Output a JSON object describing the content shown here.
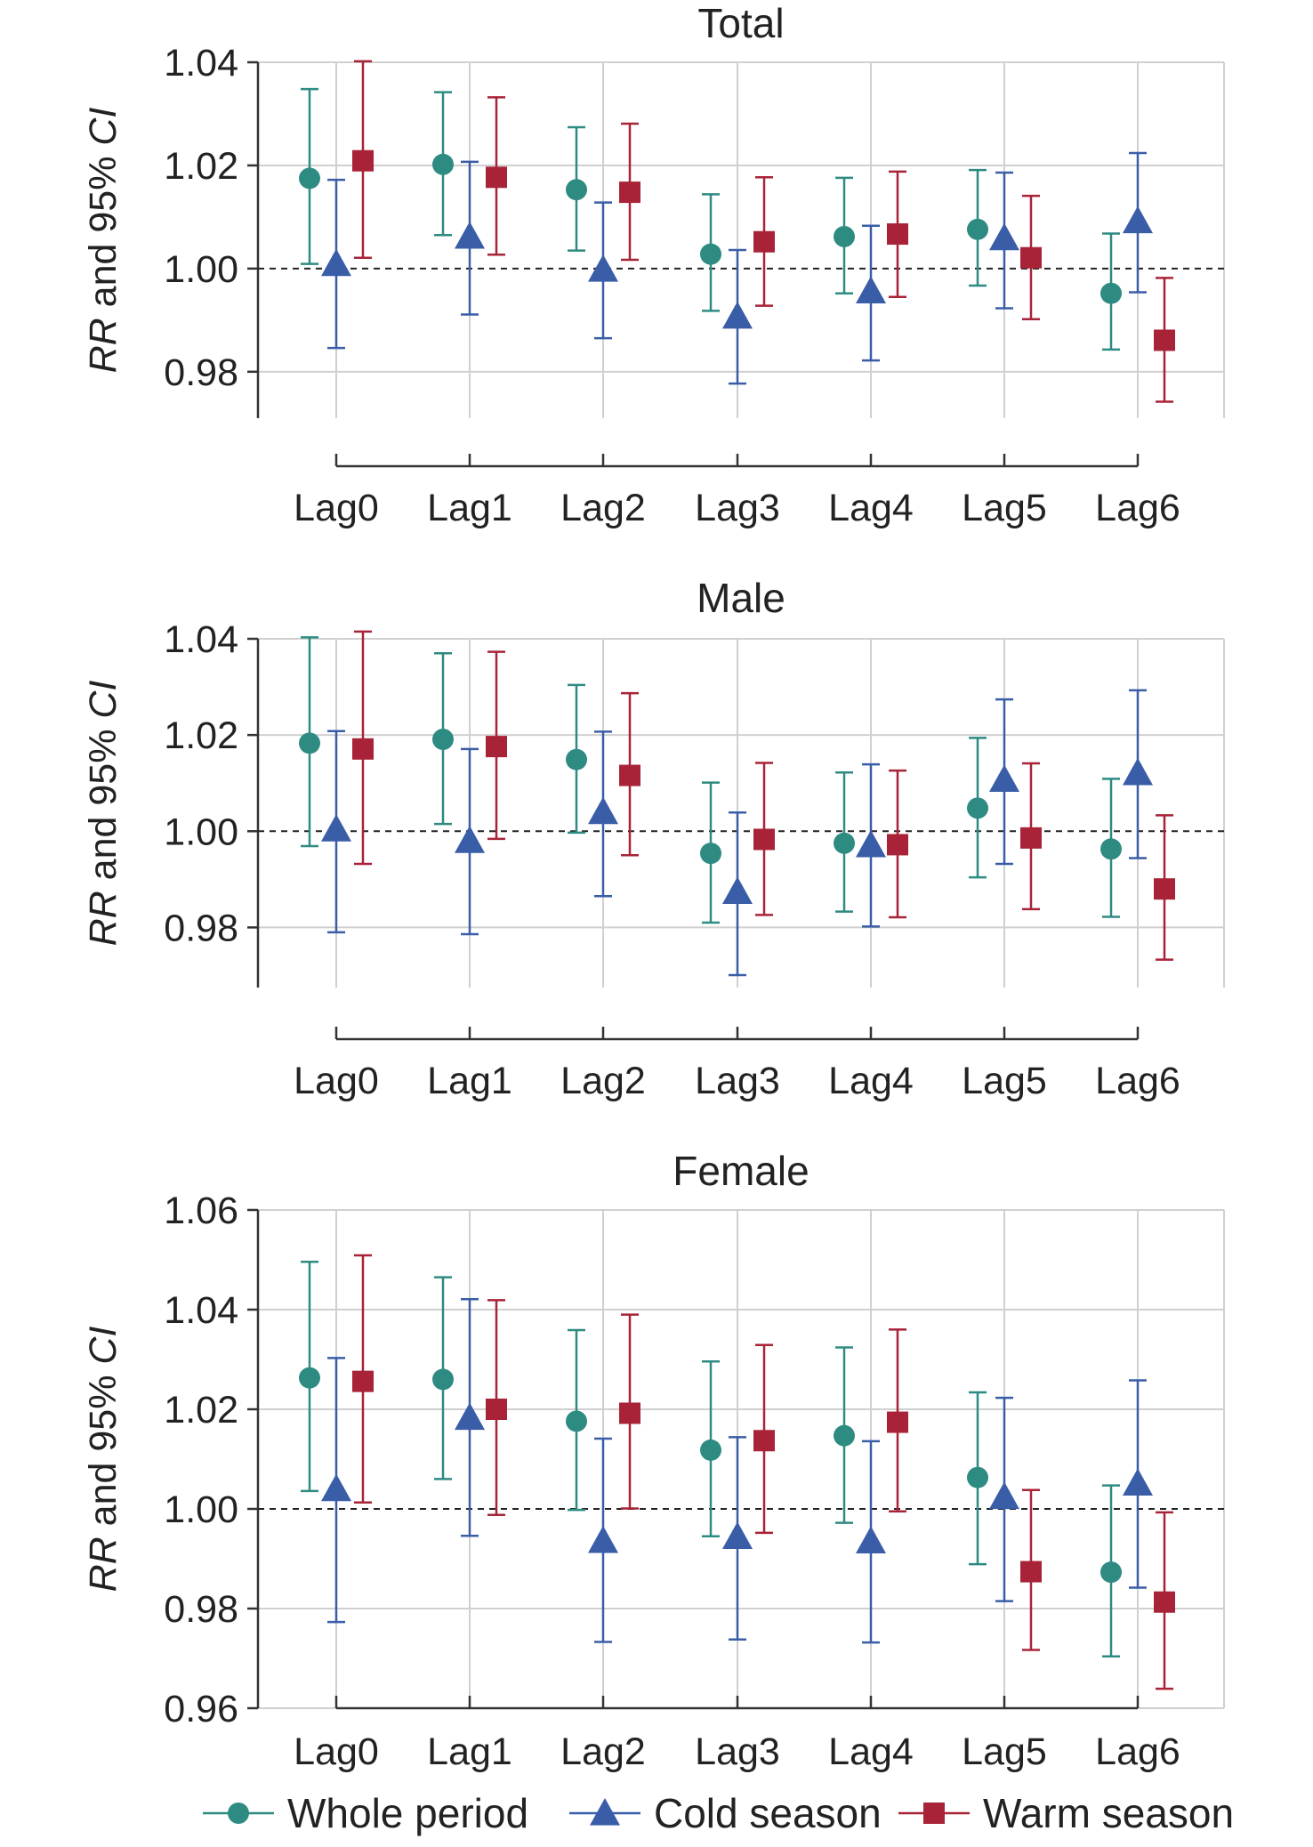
{
  "chart_data": [
    {
      "type": "scatter",
      "title": "Total",
      "ylabel_italic_1": "RR",
      "ylabel_mid": " and 95% ",
      "ylabel_italic_2": "CI",
      "categories": [
        "Lag0",
        "Lag1",
        "Lag2",
        "Lag3",
        "Lag4",
        "Lag5",
        "Lag6"
      ],
      "ylim": [
        0.971,
        1.04
      ],
      "yticks": [
        "1.04",
        "1.02",
        "1.00",
        "0.98"
      ],
      "ytick_values": [
        1.04,
        1.02,
        1.0,
        0.98
      ],
      "reference_line": 1.0,
      "series": [
        {
          "name": "Whole period",
          "values": [
            1.0175,
            1.0202,
            1.0153,
            1.0028,
            1.0062,
            1.0076,
            0.9952
          ],
          "lower": [
            1.0009,
            1.0065,
            1.0035,
            0.9918,
            0.9952,
            0.9967,
            0.9843
          ],
          "upper": [
            1.0348,
            1.0342,
            1.0274,
            1.0144,
            1.0176,
            1.0191,
            1.0068
          ]
        },
        {
          "name": "Cold season",
          "values": [
            1.0009,
            1.0062,
            0.9998,
            0.9907,
            0.9956,
            1.0059,
            1.0092
          ],
          "lower": [
            0.9846,
            0.9911,
            0.9865,
            0.9777,
            0.9822,
            0.9923,
            0.9954
          ],
          "upper": [
            1.0172,
            1.0207,
            1.0128,
            1.0036,
            1.0083,
            1.0186,
            1.0224
          ]
        },
        {
          "name": "Warm season",
          "values": [
            1.0209,
            1.0177,
            1.0148,
            1.0052,
            1.0067,
            1.0021,
            0.9861
          ],
          "lower": [
            1.0021,
            1.0027,
            1.0017,
            0.9928,
            0.9945,
            0.9902,
            0.9742
          ],
          "upper": [
            1.0402,
            1.0332,
            1.0281,
            1.0177,
            1.0188,
            1.0141,
            0.9982
          ]
        }
      ]
    },
    {
      "type": "scatter",
      "title": "Male",
      "ylabel_italic_1": "RR",
      "ylabel_mid": " and 95% ",
      "ylabel_italic_2": "CI",
      "categories": [
        "Lag0",
        "Lag1",
        "Lag2",
        "Lag3",
        "Lag4",
        "Lag5",
        "Lag6"
      ],
      "ylim": [
        0.9675,
        1.04
      ],
      "yticks": [
        "1.04",
        "1.02",
        "1.00",
        "0.98"
      ],
      "ytick_values": [
        1.04,
        1.02,
        1.0,
        0.98
      ],
      "reference_line": 1.0,
      "series": [
        {
          "name": "Whole period",
          "values": [
            1.0183,
            1.0191,
            1.0149,
            0.9954,
            0.9975,
            1.0048,
            0.9963
          ],
          "lower": [
            0.9969,
            1.0015,
            0.9997,
            0.981,
            0.9833,
            0.9904,
            0.9822
          ],
          "upper": [
            1.0403,
            1.037,
            1.0304,
            1.0101,
            1.0122,
            1.0194,
            1.0109
          ]
        },
        {
          "name": "Cold season",
          "values": [
            1.0004,
            0.998,
            1.004,
            0.9874,
            0.9971,
            1.0107,
            1.0121
          ],
          "lower": [
            0.979,
            0.9786,
            0.9865,
            0.9701,
            0.9802,
            0.9932,
            0.9944
          ],
          "upper": [
            1.0208,
            1.0171,
            1.0207,
            1.0039,
            1.0139,
            1.0274,
            1.0293
          ]
        },
        {
          "name": "Warm season",
          "values": [
            1.0171,
            1.0176,
            1.0116,
            0.9983,
            0.9972,
            0.9986,
            0.988
          ],
          "lower": [
            0.9932,
            0.9984,
            0.995,
            0.9826,
            0.9821,
            0.9838,
            0.9733
          ],
          "upper": [
            1.0415,
            1.0373,
            1.0287,
            1.0142,
            1.0126,
            1.0141,
            1.0033
          ]
        }
      ]
    },
    {
      "type": "scatter",
      "title": "Female",
      "ylabel_italic_1": "RR",
      "ylabel_mid": " and 95% ",
      "ylabel_italic_2": "CI",
      "categories": [
        "Lag0",
        "Lag1",
        "Lag2",
        "Lag3",
        "Lag4",
        "Lag5",
        "Lag6"
      ],
      "ylim": [
        0.96,
        1.06
      ],
      "yticks": [
        "1.06",
        "1.04",
        "1.02",
        "1.00",
        "0.98",
        "0.96"
      ],
      "ytick_values": [
        1.06,
        1.04,
        1.02,
        1.0,
        0.98,
        0.96
      ],
      "reference_line": 1.0,
      "series": [
        {
          "name": "Whole period",
          "values": [
            1.0263,
            1.026,
            1.0176,
            1.0118,
            1.0147,
            1.0063,
            0.9873
          ],
          "lower": [
            1.0036,
            1.006,
            0.9998,
            0.9945,
            0.9972,
            0.9889,
            0.9704
          ],
          "upper": [
            1.0496,
            1.0465,
            1.0359,
            1.0296,
            1.0324,
            1.0234,
            1.0047
          ]
        },
        {
          "name": "Cold season",
          "values": [
            1.004,
            1.0183,
            0.9936,
            0.9944,
            0.9935,
            1.0024,
            1.0051
          ],
          "lower": [
            0.9773,
            0.9946,
            0.9733,
            0.9738,
            0.9732,
            0.9815,
            0.9842
          ],
          "upper": [
            1.0303,
            1.0421,
            1.0141,
            1.0144,
            1.0136,
            1.0223,
            1.0258
          ]
        },
        {
          "name": "Warm season",
          "values": [
            1.0256,
            1.02,
            1.0192,
            1.0137,
            1.0174,
            0.9874,
            0.9813
          ],
          "lower": [
            1.0013,
            0.9988,
            1.0001,
            0.9952,
            0.9995,
            0.9717,
            0.9639
          ],
          "upper": [
            1.0509,
            1.0419,
            1.039,
            1.0329,
            1.036,
            1.0038,
            0.9993
          ]
        }
      ]
    }
  ],
  "legend": {
    "items": [
      "Whole period",
      "Cold season",
      "Warm season"
    ]
  },
  "colors": {
    "whole_period": "#2e8b82",
    "cold_season": "#3a5da8",
    "warm_season": "#a82337",
    "grid": "#d0d0d0",
    "axis": "#333333"
  }
}
